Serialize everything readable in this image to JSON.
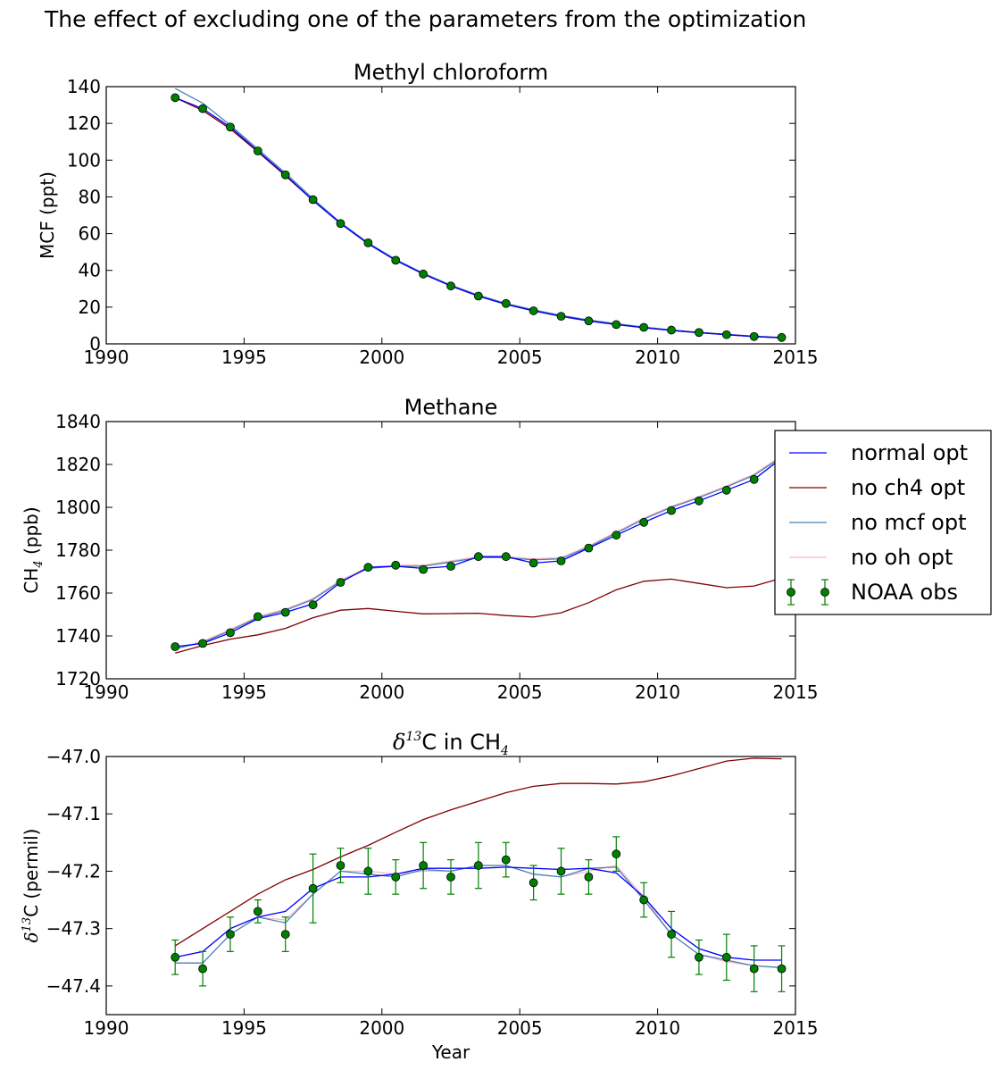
{
  "suptitle": "The effect of excluding one of the parameters from the optimization",
  "colors": {
    "normal_opt": "#0000ff",
    "no_ch4_opt": "#800000",
    "no_mcf_opt": "#4682b4",
    "no_oh_opt": "#ffb6c1",
    "noaa_obs": "#008000"
  },
  "legend": {
    "placement": "right of Methane panel",
    "entries": [
      "normal opt",
      "no ch4 opt",
      "no mcf opt",
      "no oh opt",
      "NOAA obs"
    ]
  },
  "chart_data": [
    {
      "type": "line",
      "title": "Methyl chloroform",
      "xlabel": "",
      "ylabel": "MCF (ppt)",
      "xlim": [
        1990,
        2015
      ],
      "ylim": [
        0,
        140
      ],
      "xticks": [
        "1990",
        "1995",
        "2000",
        "2005",
        "2010",
        "2015"
      ],
      "yticks": [
        "0",
        "20",
        "40",
        "60",
        "80",
        "100",
        "120",
        "140"
      ],
      "x": [
        1992.5,
        1993.5,
        1994.5,
        1995.5,
        1996.5,
        1997.5,
        1998.5,
        1999.5,
        2000.5,
        2001.5,
        2002.5,
        2003.5,
        2004.5,
        2005.5,
        2006.5,
        2007.5,
        2008.5,
        2009.5,
        2010.5,
        2011.5,
        2012.5,
        2013.5,
        2014.5
      ],
      "series": [
        {
          "name": "normal opt",
          "values": [
            134,
            128,
            118,
            105,
            92,
            78,
            65.5,
            54.5,
            45.5,
            38,
            31.5,
            26,
            21.5,
            18,
            15,
            12.5,
            10.5,
            8.8,
            7.3,
            6.1,
            5,
            4,
            3.3
          ]
        },
        {
          "name": "no ch4 opt",
          "values": [
            134,
            127,
            117,
            104.5,
            91.5,
            78,
            65.5,
            54.5,
            45.5,
            38,
            31.5,
            26,
            21.5,
            18,
            15,
            12.5,
            10.5,
            8.8,
            7.3,
            6.1,
            5,
            4,
            3.3
          ]
        },
        {
          "name": "no mcf opt",
          "values": [
            139,
            131,
            119,
            106,
            93,
            79,
            66,
            55,
            46,
            38.5,
            32,
            26.5,
            22,
            18.5,
            15.5,
            13,
            11,
            9.2,
            7.6,
            6.3,
            5.2,
            4.2,
            3.5
          ]
        },
        {
          "name": "no oh opt",
          "values": [
            134,
            127,
            117,
            104.5,
            91.5,
            78,
            65.5,
            54.5,
            45.5,
            38,
            31.5,
            26,
            21.5,
            18,
            15,
            12.5,
            10.5,
            8.8,
            7.3,
            6.1,
            5,
            4,
            3.3
          ]
        }
      ],
      "observations": {
        "name": "NOAA obs",
        "values": [
          134,
          128,
          118,
          105,
          92,
          78.5,
          65.5,
          55,
          45.5,
          38,
          31.5,
          26,
          22,
          18,
          15,
          12.5,
          10.5,
          9,
          7.5,
          6.2,
          5,
          4,
          3.5
        ]
      }
    },
    {
      "type": "line",
      "title": "Methane",
      "xlabel": "",
      "ylabel_main": "CH",
      "ylabel_sub": "4",
      "ylabel_tail": " (ppb)",
      "xlim": [
        1990,
        2015
      ],
      "ylim": [
        1720,
        1840
      ],
      "xticks": [
        "1990",
        "1995",
        "2000",
        "2005",
        "2010",
        "2015"
      ],
      "yticks": [
        "1720",
        "1740",
        "1760",
        "1780",
        "1800",
        "1820",
        "1840"
      ],
      "x": [
        1992.5,
        1993.5,
        1994.5,
        1995.5,
        1996.5,
        1997.5,
        1998.5,
        1999.5,
        2000.5,
        2001.5,
        2002.5,
        2003.5,
        2004.5,
        2005.5,
        2006.5,
        2007.5,
        2008.5,
        2009.5,
        2010.5,
        2011.5,
        2012.5,
        2013.5,
        2014.5
      ],
      "series": [
        {
          "name": "normal opt",
          "values": [
            1735,
            1736.5,
            1741.5,
            1748,
            1751,
            1755,
            1765,
            1772,
            1772.5,
            1771.5,
            1772.5,
            1777,
            1777,
            1774,
            1775,
            1781,
            1787,
            1793,
            1798.5,
            1803,
            1808,
            1813,
            1823
          ]
        },
        {
          "name": "no ch4 opt",
          "values": [
            1732,
            1735.5,
            1738.5,
            1740.5,
            1743.5,
            1748.5,
            1752,
            1752.8,
            1751.5,
            1750.3,
            1750.4,
            1750.6,
            1749.5,
            1748.8,
            1750.8,
            1755.5,
            1761.5,
            1765.5,
            1766.5,
            1764.5,
            1762.5,
            1763.3,
            1767
          ]
        },
        {
          "name": "no mcf opt",
          "values": [
            1734,
            1737,
            1742.5,
            1748.5,
            1752,
            1757,
            1765.5,
            1771.5,
            1772.5,
            1772.5,
            1774.5,
            1776.5,
            1776.5,
            1775.5,
            1776,
            1781.5,
            1788,
            1794.5,
            1800,
            1804.5,
            1809.5,
            1815,
            1823.5
          ]
        },
        {
          "name": "no oh opt",
          "values": [
            1734,
            1737.5,
            1743,
            1749,
            1752.5,
            1757.5,
            1766,
            1772,
            1773,
            1773,
            1775,
            1777,
            1777,
            1776,
            1776.5,
            1782,
            1788.5,
            1795,
            1800.5,
            1805,
            1810,
            1815.5,
            1824
          ]
        }
      ],
      "observations": {
        "name": "NOAA obs",
        "values": [
          1735,
          1736.5,
          1741.5,
          1749,
          1751,
          1754.5,
          1765,
          1772,
          1773,
          1771,
          1772.5,
          1777,
          1777,
          1774,
          1775,
          1781,
          1787,
          1793,
          1798.5,
          1803,
          1808,
          1813,
          1823
        ]
      }
    },
    {
      "type": "line",
      "title_delta": "δ",
      "title_sup": "13",
      "title_mid": "C in CH",
      "title_sub": "4",
      "xlabel": "Year",
      "ylabel_delta": "δ",
      "ylabel_sup": "13",
      "ylabel_tail": "C (permil)",
      "xlim": [
        1990,
        2015
      ],
      "ylim": [
        -47.45,
        -47.0
      ],
      "xticks": [
        "1990",
        "1995",
        "2000",
        "2005",
        "2010",
        "2015"
      ],
      "yticks": [
        "−47.4",
        "−47.3",
        "−47.2",
        "−47.1",
        "−47.0"
      ],
      "ytick_values": [
        -47.4,
        -47.3,
        -47.2,
        -47.1,
        -47.0
      ],
      "x": [
        1992.5,
        1993.5,
        1994.5,
        1995.5,
        1996.5,
        1997.5,
        1998.5,
        1999.5,
        2000.5,
        2001.5,
        2002.5,
        2003.5,
        2004.5,
        2005.5,
        2006.5,
        2007.5,
        2008.5,
        2009.5,
        2010.5,
        2011.5,
        2012.5,
        2013.5,
        2014.5
      ],
      "series": [
        {
          "name": "normal opt",
          "values": [
            -47.35,
            -47.34,
            -47.3,
            -47.28,
            -47.27,
            -47.23,
            -47.21,
            -47.21,
            -47.205,
            -47.195,
            -47.195,
            -47.195,
            -47.193,
            -47.195,
            -47.197,
            -47.195,
            -47.203,
            -47.245,
            -47.3,
            -47.335,
            -47.35,
            -47.355,
            -47.355
          ]
        },
        {
          "name": "no ch4 opt",
          "values": [
            -47.33,
            -47.3,
            -47.27,
            -47.24,
            -47.215,
            -47.197,
            -47.175,
            -47.155,
            -47.132,
            -47.11,
            -47.093,
            -47.078,
            -47.063,
            -47.052,
            -47.047,
            -47.047,
            -47.048,
            -47.044,
            -47.034,
            -47.021,
            -47.008,
            -47.003,
            -47.004
          ]
        },
        {
          "name": "no mcf opt",
          "values": [
            -47.36,
            -47.36,
            -47.31,
            -47.28,
            -47.29,
            -47.24,
            -47.2,
            -47.205,
            -47.21,
            -47.197,
            -47.2,
            -47.19,
            -47.19,
            -47.205,
            -47.21,
            -47.195,
            -47.193,
            -47.25,
            -47.31,
            -47.345,
            -47.355,
            -47.365,
            -47.368
          ]
        },
        {
          "name": "no oh opt",
          "values": [
            -47.35,
            -47.34,
            -47.3,
            -47.28,
            -47.285,
            -47.24,
            -47.2,
            -47.2,
            -47.205,
            -47.2,
            -47.2,
            -47.19,
            -47.19,
            -47.205,
            -47.21,
            -47.2,
            -47.19,
            -47.245,
            -47.31,
            -47.345,
            -47.358,
            -47.365,
            -47.368
          ]
        }
      ],
      "observations": {
        "name": "NOAA obs",
        "values": [
          -47.35,
          -47.37,
          -47.31,
          -47.27,
          -47.31,
          -47.23,
          -47.19,
          -47.2,
          -47.21,
          -47.19,
          -47.21,
          -47.19,
          -47.18,
          -47.22,
          -47.2,
          -47.21,
          -47.17,
          -47.25,
          -47.31,
          -47.35,
          -47.35,
          -47.37,
          -47.37
        ],
        "errors": [
          0.03,
          0.03,
          0.03,
          0.02,
          0.03,
          0.06,
          0.03,
          0.04,
          0.03,
          0.04,
          0.03,
          0.04,
          0.03,
          0.03,
          0.04,
          0.03,
          0.03,
          0.03,
          0.04,
          0.03,
          0.04,
          0.04,
          0.04
        ]
      }
    }
  ]
}
